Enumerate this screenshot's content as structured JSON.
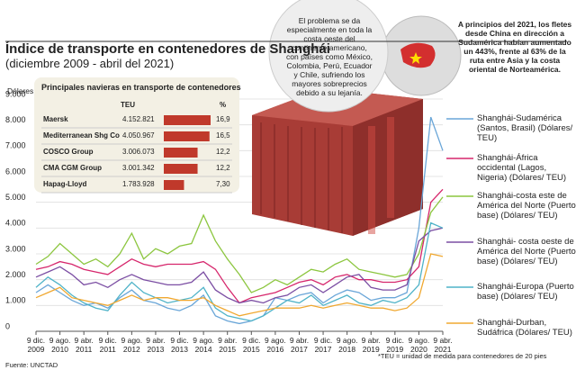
{
  "title": "Índice de transporte en contenedores de Shanghái",
  "subtitle": "(diciembre 2009 - abril del 2021)",
  "chart_data": [
    {
      "type": "line",
      "y_label": "Dólares",
      "categories": [
        "9 dic. 2009",
        null,
        "9 ago. 2010",
        null,
        "9 abr. 2011",
        null,
        "9 dic. 2011",
        null,
        "9 ago. 2012",
        null,
        "9 abr. 2013",
        null,
        "9 dic. 2013",
        null,
        "9 ago. 2014",
        null,
        "9 abr. 2015",
        null,
        "9 dic. 2015",
        null,
        "9 ago. 2016",
        null,
        "9 abr. 2017",
        null,
        "9 dic. 2017",
        null,
        "9 ago. 2018",
        null,
        "9 abr. 2019",
        null,
        "9 dic. 2019",
        null,
        "9 ago. 2020",
        null,
        "9 abr. 2021"
      ],
      "ylim": [
        0,
        9000
      ],
      "yticks": [
        {
          "value": 0,
          "label": "0"
        },
        {
          "value": 1000,
          "label": "1.000"
        },
        {
          "value": 2000,
          "label": "2.000"
        },
        {
          "value": 3000,
          "label": "3.000"
        },
        {
          "value": 4000,
          "label": "4.000"
        },
        {
          "value": 5000,
          "label": "5.000"
        },
        {
          "value": 6000,
          "label": "6.000"
        },
        {
          "value": 7000,
          "label": "7.000"
        },
        {
          "value": 8000,
          "label": "8.000"
        },
        {
          "value": 9000,
          "label": "9.000"
        }
      ],
      "grid": true,
      "series": [
        {
          "name": "Shanghái-Sudamérica (Santos, Brasil) (Dólares/ TEU)",
          "color": "#6aa6d8",
          "values": [
            1500,
            1800,
            1500,
            1200,
            1000,
            1100,
            900,
            1300,
            1600,
            1200,
            1100,
            900,
            800,
            1000,
            1400,
            600,
            400,
            300,
            400,
            600,
            1300,
            1200,
            1400,
            1500,
            1100,
            1400,
            1600,
            1500,
            1200,
            1300,
            1300,
            1500,
            4000,
            8300,
            7000
          ]
        },
        {
          "name": "Shanghái-África occidental (Lagos, Nigeria) (Dólares/ TEU)",
          "color": "#d6266c",
          "values": [
            2400,
            2500,
            2700,
            2600,
            2400,
            2300,
            2200,
            2500,
            2800,
            2600,
            2500,
            2600,
            2600,
            2600,
            2700,
            2400,
            1700,
            1100,
            1300,
            1400,
            1500,
            1700,
            1900,
            2000,
            1800,
            2100,
            2200,
            2000,
            2000,
            1900,
            1900,
            2000,
            2500,
            5000,
            5500
          ]
        },
        {
          "name": "Shanghái-costa este de América del Norte (Puerto base) (Dólares/ TEU)",
          "color": "#8cc63f",
          "values": [
            2600,
            2900,
            3400,
            3000,
            2600,
            2800,
            2500,
            3000,
            3800,
            2800,
            3200,
            3000,
            3300,
            3400,
            4500,
            3500,
            2800,
            2200,
            1500,
            1700,
            2000,
            1800,
            2100,
            2400,
            2300,
            2600,
            2800,
            2400,
            2300,
            2200,
            2100,
            2200,
            3000,
            4600,
            5200
          ]
        },
        {
          "name": "Shanghái- costa oeste de América del Norte (Puerto base) (Dólares/ TEU)",
          "color": "#7b4ea3",
          "values": [
            2100,
            2300,
            2500,
            2200,
            1800,
            1900,
            1700,
            2000,
            2200,
            2000,
            1900,
            1800,
            1800,
            1900,
            2300,
            1600,
            1300,
            1100,
            1200,
            1100,
            1300,
            1400,
            1700,
            1800,
            1500,
            1800,
            2100,
            2200,
            1700,
            1600,
            1600,
            1800,
            3500,
            3900,
            4000
          ]
        },
        {
          "name": "Shanghái-Europa (Puerto base) (Dólares/ TEU)",
          "color": "#4fb3c8",
          "values": [
            1700,
            2100,
            1800,
            1400,
            1100,
            900,
            800,
            1400,
            1900,
            1500,
            1300,
            1100,
            1200,
            1300,
            1700,
            900,
            600,
            500,
            400,
            600,
            900,
            1200,
            1100,
            1400,
            1000,
            1200,
            1400,
            1100,
            1000,
            1200,
            1100,
            1300,
            1800,
            4200,
            4000
          ]
        },
        {
          "name": "Shanghái-Durban, Sudáfrica (Dólares/ TEU)",
          "color": "#f0a830",
          "values": [
            1300,
            1500,
            1700,
            1300,
            1200,
            1100,
            1000,
            1200,
            1400,
            1200,
            1300,
            1300,
            1200,
            1200,
            1300,
            1000,
            800,
            600,
            700,
            800,
            900,
            900,
            900,
            1000,
            900,
            1000,
            1100,
            1000,
            900,
            900,
            800,
            900,
            1300,
            3000,
            2900
          ]
        }
      ]
    },
    {
      "type": "hbar",
      "title": "Principales navieras en transporte de contenedores",
      "headers": [
        "TEU",
        "%"
      ],
      "color": "#c0392b",
      "categories": [
        "Maersk",
        "Mediterranean Shg Co",
        "COSCO Group",
        "CMA CGM Group",
        "Hapag-Lloyd"
      ],
      "teu": [
        "4.152.821",
        "4.050.967",
        "3.006.073",
        "3.001.342",
        "1.783.928"
      ],
      "values": [
        16.9,
        16.5,
        12.2,
        12.2,
        7.3
      ],
      "value_labels": [
        "16,9",
        "16,5",
        "12,2",
        "12,2",
        "7,30"
      ]
    }
  ],
  "annotations": [
    "El problema se da especialmente en toda la costa oeste del continente americano, con países como México, Colombia, Perú, Ecuador y Chile, sufriendo los mayores sobreprecios debido a su lejanía.",
    "A principios del 2021, los fletes desde China en dirección a Sudamérica habían aumentado un 443%, frente al 63% de la ruta entre Asia y la costa oriental de Norteamérica."
  ],
  "footnote": "*TEU = unidad de medida para contenedores de 20 pies",
  "source": "Fuente: UNCTAD"
}
